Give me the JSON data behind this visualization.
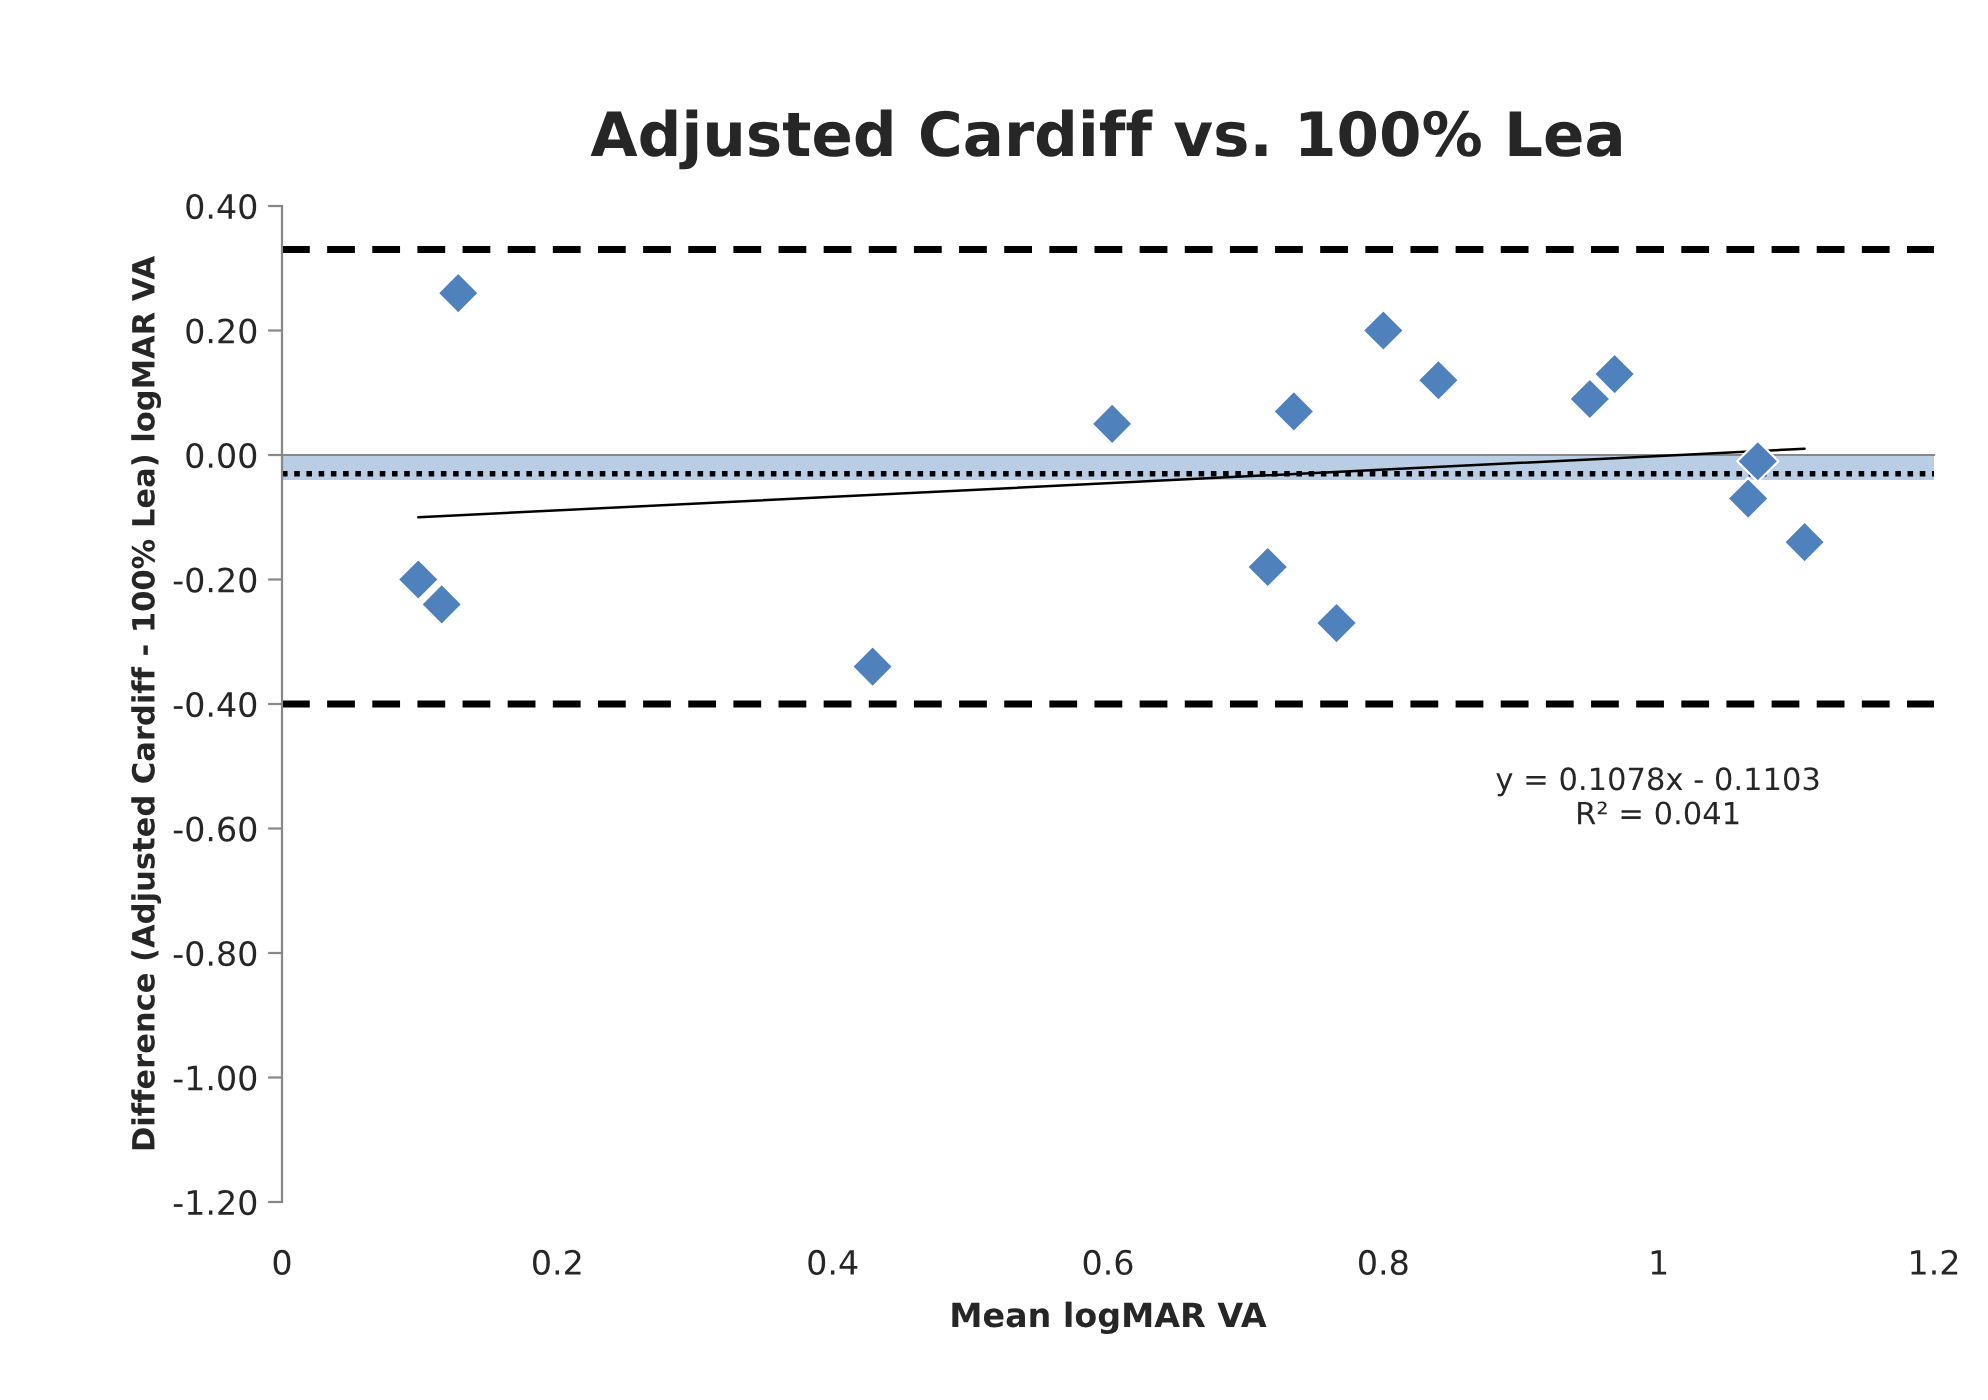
{
  "chart_data": {
    "type": "scatter",
    "title": "Adjusted Cardiff vs. 100% Lea",
    "xlabel": "Mean logMAR VA",
    "ylabel": "Difference (Adjusted Cardiff - 100% Lea) logMAR VA",
    "series": [
      {
        "color": "#4f81bd",
        "marker": "diamond",
        "x": [
          0.099,
          0.116,
          0.128,
          0.429,
          0.603,
          0.716,
          0.735,
          0.766,
          0.8,
          0.84,
          0.95,
          0.968,
          1.065,
          1.072,
          1.106
        ],
        "values": [
          -0.2,
          -0.24,
          0.26,
          -0.34,
          0.05,
          -0.18,
          0.07,
          -0.27,
          0.2,
          0.12,
          0.09,
          0.13,
          -0.07,
          -0.01,
          -0.14
        ]
      },
      {
        "type": "line",
        "color": "#000000",
        "x": [
          0.099,
          1.106
        ],
        "values": [
          -0.1,
          0.01
        ]
      }
    ],
    "ref_lines": [
      {
        "axis": "y",
        "value": 0.33,
        "color": "#000000",
        "line_style": "dashed"
      },
      {
        "axis": "y",
        "value": -0.4,
        "color": "#000000",
        "line_style": "dashed"
      },
      {
        "axis": "y",
        "value": -0.03,
        "color": "#000000",
        "line_style": "dotted"
      }
    ],
    "bands": [
      {
        "axis": "y",
        "from": -0.04,
        "to": 0.0,
        "color": "#b9cde5"
      }
    ],
    "annotations": [
      "y = 0.1078x - 0.1103\nR² = 0.041"
    ],
    "xlim": [
      0,
      1.2
    ],
    "xticks": [
      0,
      0.2,
      0.4,
      0.6,
      0.8,
      1,
      1.2
    ],
    "ylim": [
      -1.2,
      0.4
    ],
    "yticks": [
      {
        "value": -1.2,
        "label": "-1.20"
      },
      {
        "value": -1.0,
        "label": "-1.00"
      },
      {
        "value": -0.8,
        "label": "-0.80"
      },
      {
        "value": -0.6,
        "label": "-0.60"
      },
      {
        "value": -0.4,
        "label": "-0.40"
      },
      {
        "value": -0.2,
        "label": "-0.20"
      },
      {
        "value": 0,
        "label": "0.00"
      },
      {
        "value": 0.2,
        "label": "0.20"
      },
      {
        "value": 0.4,
        "label": "0.40"
      }
    ],
    "grid": false,
    "legend": false
  }
}
